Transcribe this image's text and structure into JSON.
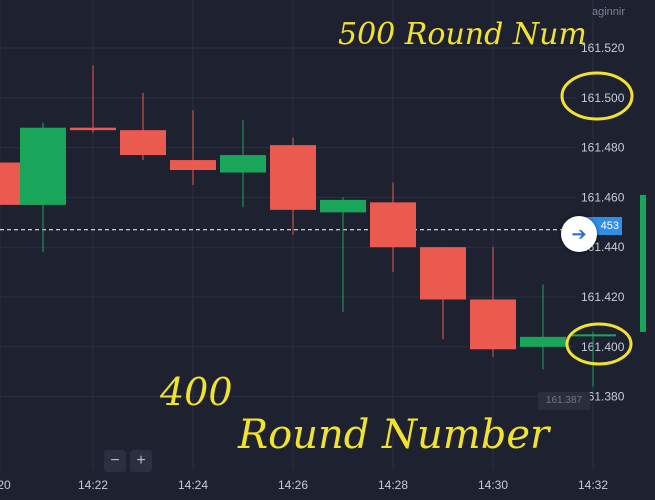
{
  "header": {
    "label": "aginnir"
  },
  "price_badge": {
    "value": "453"
  },
  "timer_badge": {
    "value": "161.387"
  },
  "controls": {
    "zoom_out": "−",
    "zoom_in": "+",
    "goto_latest": "➔"
  },
  "annotations": {
    "top": "500 Round Num",
    "bottom_line1": "400",
    "bottom_line2": "Round Number"
  },
  "colors": {
    "up": "#1aa65a",
    "down": "#eb5a4f",
    "background": "#1d2130",
    "grid": "#2b3040",
    "annotation": "#f2e230"
  },
  "chart_data": {
    "type": "candlestick",
    "title": "",
    "xlabel": "",
    "ylabel": "",
    "ylim": [
      161.36,
      161.56
    ],
    "y_ticks": [
      "161.520",
      "161.500",
      "161.480",
      "161.460",
      "161.440",
      "161.420",
      "161.400",
      "161.380"
    ],
    "x_ticks": [
      "20",
      "14:22",
      "14:24",
      "14:26",
      "14:28",
      "14:30",
      "14:32"
    ],
    "current_price": 161.447,
    "candles": [
      {
        "time": "14:20.5",
        "open": 161.474,
        "high": 161.474,
        "low": 161.457,
        "close": 161.457
      },
      {
        "time": "14:21",
        "open": 161.457,
        "high": 161.49,
        "low": 161.438,
        "close": 161.488
      },
      {
        "time": "14:22",
        "open": 161.488,
        "high": 161.513,
        "low": 161.486,
        "close": 161.487
      },
      {
        "time": "14:23",
        "open": 161.487,
        "high": 161.502,
        "low": 161.475,
        "close": 161.477
      },
      {
        "time": "14:24",
        "open": 161.475,
        "high": 161.495,
        "low": 161.465,
        "close": 161.471
      },
      {
        "time": "14:25",
        "open": 161.47,
        "high": 161.491,
        "low": 161.456,
        "close": 161.477
      },
      {
        "time": "14:26",
        "open": 161.481,
        "high": 161.484,
        "low": 161.445,
        "close": 161.455
      },
      {
        "time": "14:27",
        "open": 161.454,
        "high": 161.46,
        "low": 161.414,
        "close": 161.459
      },
      {
        "time": "14:28",
        "open": 161.458,
        "high": 161.466,
        "low": 161.43,
        "close": 161.44
      },
      {
        "time": "14:29",
        "open": 161.44,
        "high": 161.44,
        "low": 161.403,
        "close": 161.419
      },
      {
        "time": "14:30",
        "open": 161.419,
        "high": 161.44,
        "low": 161.396,
        "close": 161.399
      },
      {
        "time": "14:31",
        "open": 161.4,
        "high": 161.425,
        "low": 161.391,
        "close": 161.404
      },
      {
        "time": "14:32",
        "open": 161.405,
        "high": 161.406,
        "low": 161.384,
        "close": 161.405
      },
      {
        "time": "14:33",
        "open": 161.406,
        "high": 161.461,
        "low": 161.406,
        "close": 161.461
      }
    ]
  }
}
